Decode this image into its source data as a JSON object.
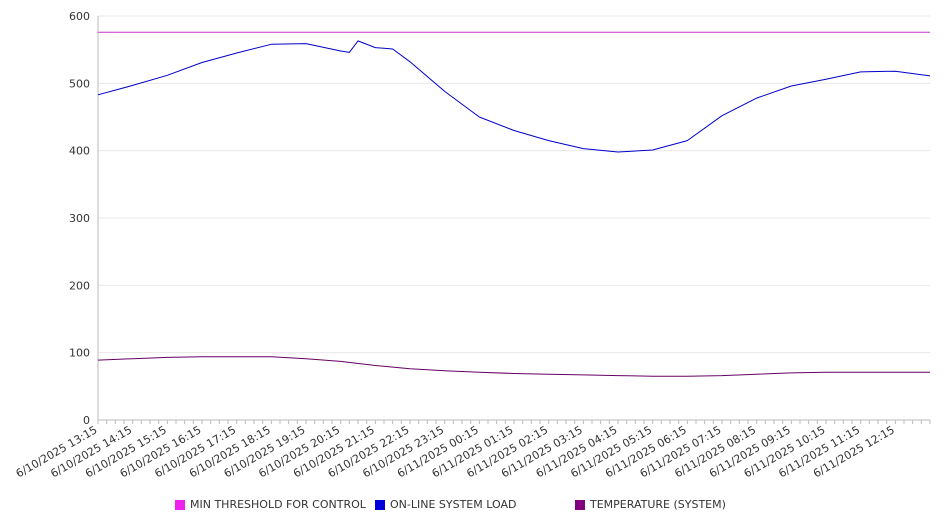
{
  "chart_data": {
    "type": "line",
    "title": "",
    "xlabel": "",
    "ylabel": "",
    "ylim": [
      0,
      600
    ],
    "yticks": [
      0,
      100,
      200,
      300,
      400,
      500,
      600
    ],
    "grid": true,
    "legend_position": "bottom",
    "x_ticks": [
      "6/10/2025 13:15",
      "6/10/2025 14:15",
      "6/10/2025 15:15",
      "6/10/2025 16:15",
      "6/10/2025 17:15",
      "6/10/2025 18:15",
      "6/10/2025 19:15",
      "6/10/2025 20:15",
      "6/10/2025 21:15",
      "6/10/2025 22:15",
      "6/10/2025 23:15",
      "6/11/2025 00:15",
      "6/11/2025 01:15",
      "6/11/2025 02:15",
      "6/11/2025 03:15",
      "6/11/2025 04:15",
      "6/11/2025 05:15",
      "6/11/2025 06:15",
      "6/11/2025 07:15",
      "6/11/2025 08:15",
      "6/11/2025 09:15",
      "6/11/2025 10:15",
      "6/11/2025 11:15",
      "6/11/2025 12:15"
    ],
    "x_end": "6/11/2025 13:15",
    "series": [
      {
        "name": "MIN THRESHOLD FOR CONTROL",
        "color": "#cc33cc",
        "swatch": "#ee22ee",
        "points": [
          [
            "6/10/2025 13:15",
            576
          ],
          [
            "6/11/2025 13:15",
            576
          ]
        ]
      },
      {
        "name": "ON-LINE SYSTEM LOAD",
        "color": "#0000cc",
        "swatch": "#0000dd",
        "points": [
          [
            "6/10/2025 13:15",
            483
          ],
          [
            "6/10/2025 14:15",
            497
          ],
          [
            "6/10/2025 15:15",
            512
          ],
          [
            "6/10/2025 16:15",
            531
          ],
          [
            "6/10/2025 17:15",
            545
          ],
          [
            "6/10/2025 18:15",
            558
          ],
          [
            "6/10/2025 19:15",
            559
          ],
          [
            "6/10/2025 20:15",
            548
          ],
          [
            "6/10/2025 20:30",
            546
          ],
          [
            "6/10/2025 20:45",
            563
          ],
          [
            "6/10/2025 21:15",
            553
          ],
          [
            "6/10/2025 21:45",
            551
          ],
          [
            "6/10/2025 22:15",
            532
          ],
          [
            "6/10/2025 23:15",
            488
          ],
          [
            "6/11/2025 00:15",
            450
          ],
          [
            "6/11/2025 01:15",
            430
          ],
          [
            "6/11/2025 02:15",
            415
          ],
          [
            "6/11/2025 03:15",
            403
          ],
          [
            "6/11/2025 04:15",
            398
          ],
          [
            "6/11/2025 05:15",
            401
          ],
          [
            "6/11/2025 06:15",
            415
          ],
          [
            "6/11/2025 07:15",
            452
          ],
          [
            "6/11/2025 08:15",
            478
          ],
          [
            "6/11/2025 09:15",
            496
          ],
          [
            "6/11/2025 10:15",
            506
          ],
          [
            "6/11/2025 11:15",
            517
          ],
          [
            "6/11/2025 12:15",
            518
          ],
          [
            "6/11/2025 13:15",
            511
          ]
        ]
      },
      {
        "name": "TEMPERATURE (SYSTEM)",
        "color": "#660066",
        "swatch": "#800080",
        "points": [
          [
            "6/10/2025 13:15",
            89
          ],
          [
            "6/10/2025 14:15",
            91
          ],
          [
            "6/10/2025 15:15",
            93
          ],
          [
            "6/10/2025 16:15",
            94
          ],
          [
            "6/10/2025 17:15",
            94
          ],
          [
            "6/10/2025 18:15",
            94
          ],
          [
            "6/10/2025 19:15",
            91
          ],
          [
            "6/10/2025 20:15",
            87
          ],
          [
            "6/10/2025 21:15",
            81
          ],
          [
            "6/10/2025 22:15",
            76
          ],
          [
            "6/10/2025 23:15",
            73
          ],
          [
            "6/11/2025 00:15",
            71
          ],
          [
            "6/11/2025 01:15",
            69
          ],
          [
            "6/11/2025 02:15",
            68
          ],
          [
            "6/11/2025 03:15",
            67
          ],
          [
            "6/11/2025 04:15",
            66
          ],
          [
            "6/11/2025 05:15",
            65
          ],
          [
            "6/11/2025 06:15",
            65
          ],
          [
            "6/11/2025 07:15",
            66
          ],
          [
            "6/11/2025 08:15",
            68
          ],
          [
            "6/11/2025 09:15",
            70
          ],
          [
            "6/11/2025 10:15",
            71
          ],
          [
            "6/11/2025 11:15",
            71
          ],
          [
            "6/11/2025 12:15",
            71
          ],
          [
            "6/11/2025 13:15",
            71
          ]
        ]
      }
    ]
  }
}
